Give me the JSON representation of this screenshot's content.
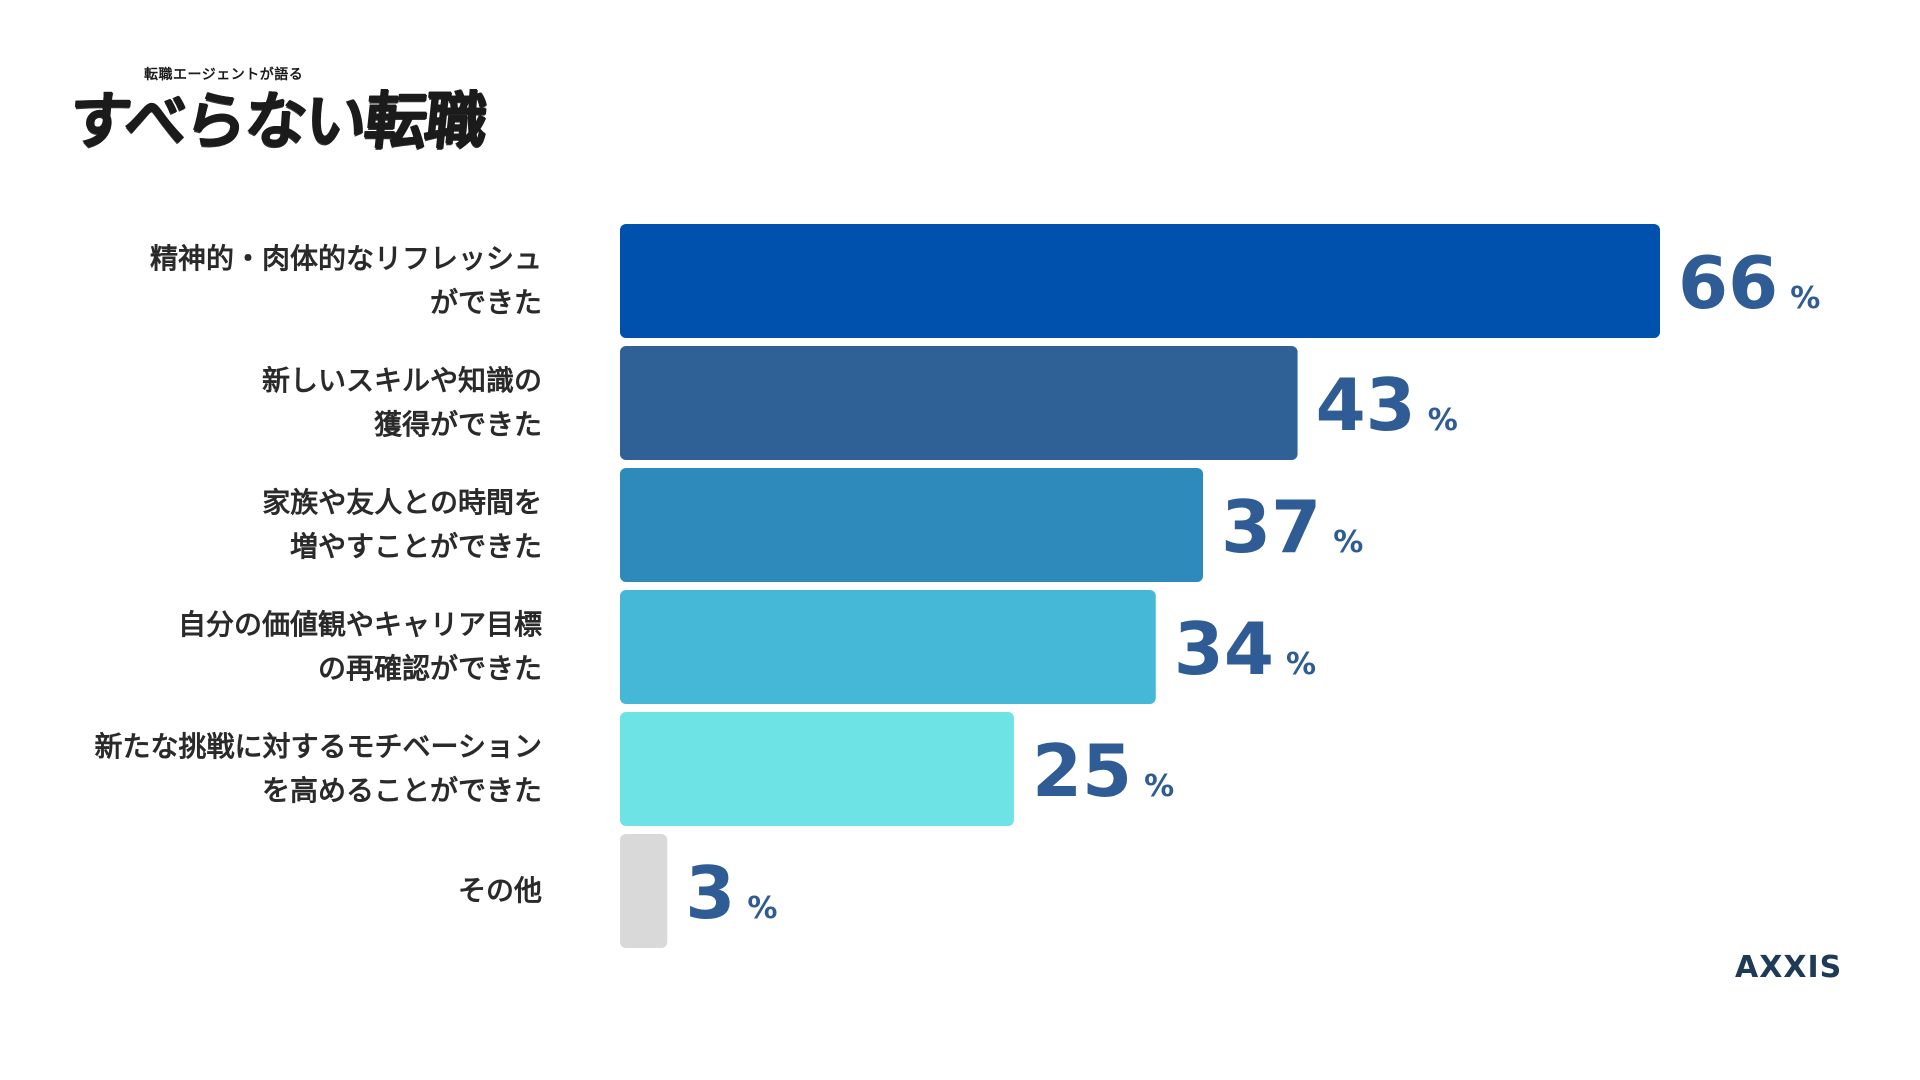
{
  "logo": {
    "subtitle": "転職エージェントが語る",
    "title": "すべらない転職"
  },
  "brand": "AXXIS",
  "chart_data": {
    "type": "bar",
    "orientation": "horizontal",
    "categories": [
      [
        "精神的・肉体的なリフレッシュ",
        "ができた"
      ],
      [
        "新しいスキルや知識の",
        "獲得ができた"
      ],
      [
        "家族や友人との時間を",
        "増やすことができた"
      ],
      [
        "自分の価値観やキャリア目標",
        "の再確認ができた"
      ],
      [
        "新たな挑戦に対するモチベーション",
        "を高めることができた"
      ],
      [
        "その他"
      ]
    ],
    "values": [
      66,
      43,
      37,
      34,
      25,
      3
    ],
    "unit": "%",
    "colors": [
      "#0050ae",
      "#2f6096",
      "#2e8abb",
      "#44b8d6",
      "#6ee3e6",
      "#d9d9d9"
    ],
    "value_label_color": "#2f5c94",
    "xlim": [
      0,
      66
    ],
    "grid": false,
    "legend": "none"
  }
}
